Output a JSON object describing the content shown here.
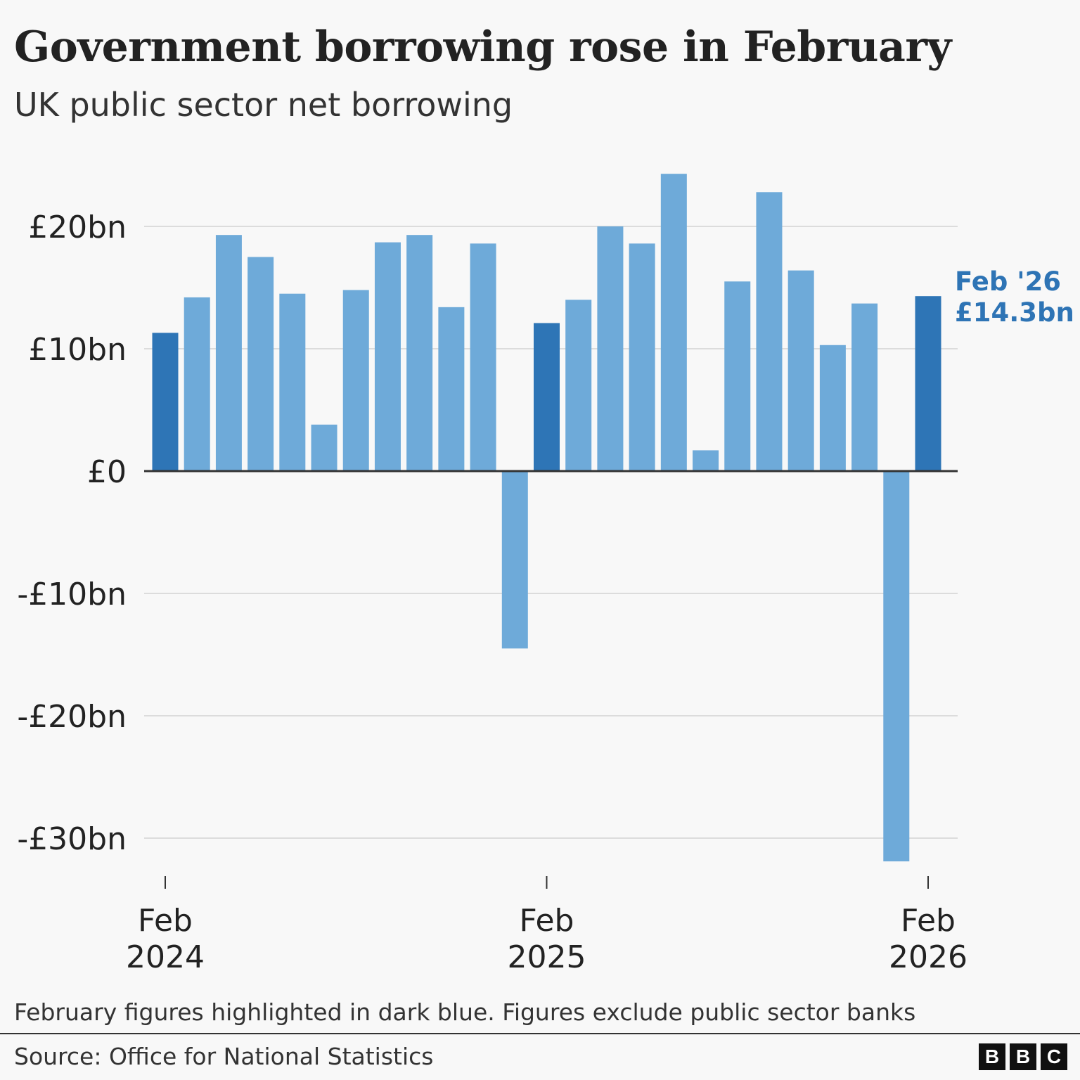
{
  "title": "Government borrowing rose in February",
  "subtitle": "UK public sector net borrowing",
  "note": "February figures highlighted in dark blue. Figures exclude public sector banks",
  "source": "Source: Office for National Statistics",
  "logo": "BBC",
  "colors": {
    "highlight": "#2e75b6",
    "regular": "#6eaad9",
    "annotation": "#2e74b5",
    "grid": "#dcdcdc",
    "zero": "#333333"
  },
  "chart_data": {
    "type": "bar",
    "title": "Government borrowing rose in February",
    "subtitle": "UK public sector net borrowing",
    "xlabel": "",
    "ylabel": "",
    "ylim": [
      -32,
      25
    ],
    "grid": true,
    "yticks": [
      {
        "value": 20,
        "label": "£20bn"
      },
      {
        "value": 10,
        "label": "£10bn"
      },
      {
        "value": 0,
        "label": "£0"
      },
      {
        "value": -10,
        "label": "-£10bn"
      },
      {
        "value": -20,
        "label": "-£20bn"
      },
      {
        "value": -30,
        "label": "-£30bn"
      }
    ],
    "xticks": [
      {
        "index": 0,
        "line1": "Feb",
        "line2": "2024"
      },
      {
        "index": 12,
        "line1": "Feb",
        "line2": "2025"
      },
      {
        "index": 24,
        "line1": "Feb",
        "line2": "2026"
      }
    ],
    "categories": [
      "Feb 2024",
      "Mar 2024",
      "Apr 2024",
      "May 2024",
      "Jun 2024",
      "Jul 2024",
      "Aug 2024",
      "Sep 2024",
      "Oct 2024",
      "Nov 2024",
      "Dec 2024",
      "Jan 2025",
      "Feb 2025",
      "Mar 2025",
      "Apr 2025",
      "May 2025",
      "Jun 2025",
      "Jul 2025",
      "Aug 2025",
      "Sep 2025",
      "Oct 2025",
      "Nov 2025",
      "Dec 2025",
      "Jan 2026",
      "Feb 2026"
    ],
    "values": [
      11.3,
      14.2,
      19.3,
      17.5,
      14.5,
      3.8,
      14.8,
      18.7,
      19.3,
      13.4,
      18.6,
      -14.5,
      12.1,
      14.0,
      20.0,
      18.6,
      24.3,
      1.7,
      15.5,
      22.8,
      16.4,
      10.3,
      13.7,
      -31.9,
      14.3
    ],
    "highlighted": [
      0,
      12,
      24
    ],
    "annotation": {
      "line1": "Feb '26",
      "line2": "£14.3bn"
    }
  }
}
